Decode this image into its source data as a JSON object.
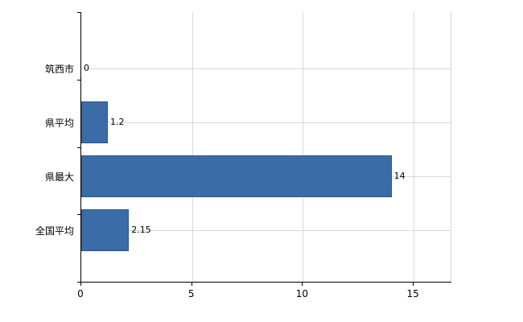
{
  "chart_data": {
    "type": "bar",
    "orientation": "horizontal",
    "title": "",
    "categories": [
      "筑西市",
      "県平均",
      "県最大",
      "全国平均"
    ],
    "values": [
      0,
      1.2,
      14,
      2.15
    ],
    "value_labels": [
      "0",
      "1.2",
      "14",
      "2.15"
    ],
    "xticks": [
      0,
      5,
      10,
      15
    ],
    "xtick_labels": [
      "0",
      "5",
      "10",
      "15"
    ],
    "xlim": [
      0,
      16.7
    ],
    "grid": true,
    "legend": false,
    "bar_color": "#3b6ca8",
    "bar_border_color": "#2d568a",
    "grid_color": "#d9d9d9",
    "axis_color": "#000000",
    "background_color": "#ffffff"
  }
}
